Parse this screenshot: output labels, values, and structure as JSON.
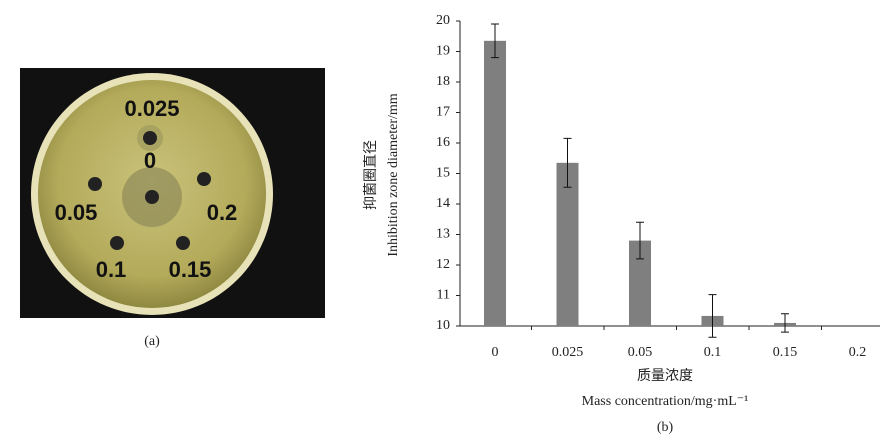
{
  "panel_a": {
    "label": "(a)",
    "well_labels": [
      "0.025",
      "0",
      "0.05",
      "0.2",
      "0.1",
      "0.15"
    ]
  },
  "chart_data": {
    "type": "bar",
    "panel_label": "(b)",
    "y_label": [
      "抑菌圈直径",
      "Inhibition  zone  diameter/mm"
    ],
    "x_label": [
      "质量浓度",
      "Mass  concentration/mg·mL⁻¹"
    ],
    "categories": [
      "0",
      "0.025",
      "0.05",
      "0.1",
      "0.15",
      "0.2"
    ],
    "values": [
      19.35,
      15.35,
      12.8,
      10.33,
      10.1,
      10
    ],
    "errors": [
      0.55,
      0.8,
      0.6,
      0.7,
      0.3,
      0
    ],
    "color": "#7f7f7f",
    "ylim": [
      10,
      20
    ],
    "yticks": [
      10,
      11,
      12,
      13,
      14,
      15,
      16,
      17,
      18,
      19,
      20
    ]
  }
}
